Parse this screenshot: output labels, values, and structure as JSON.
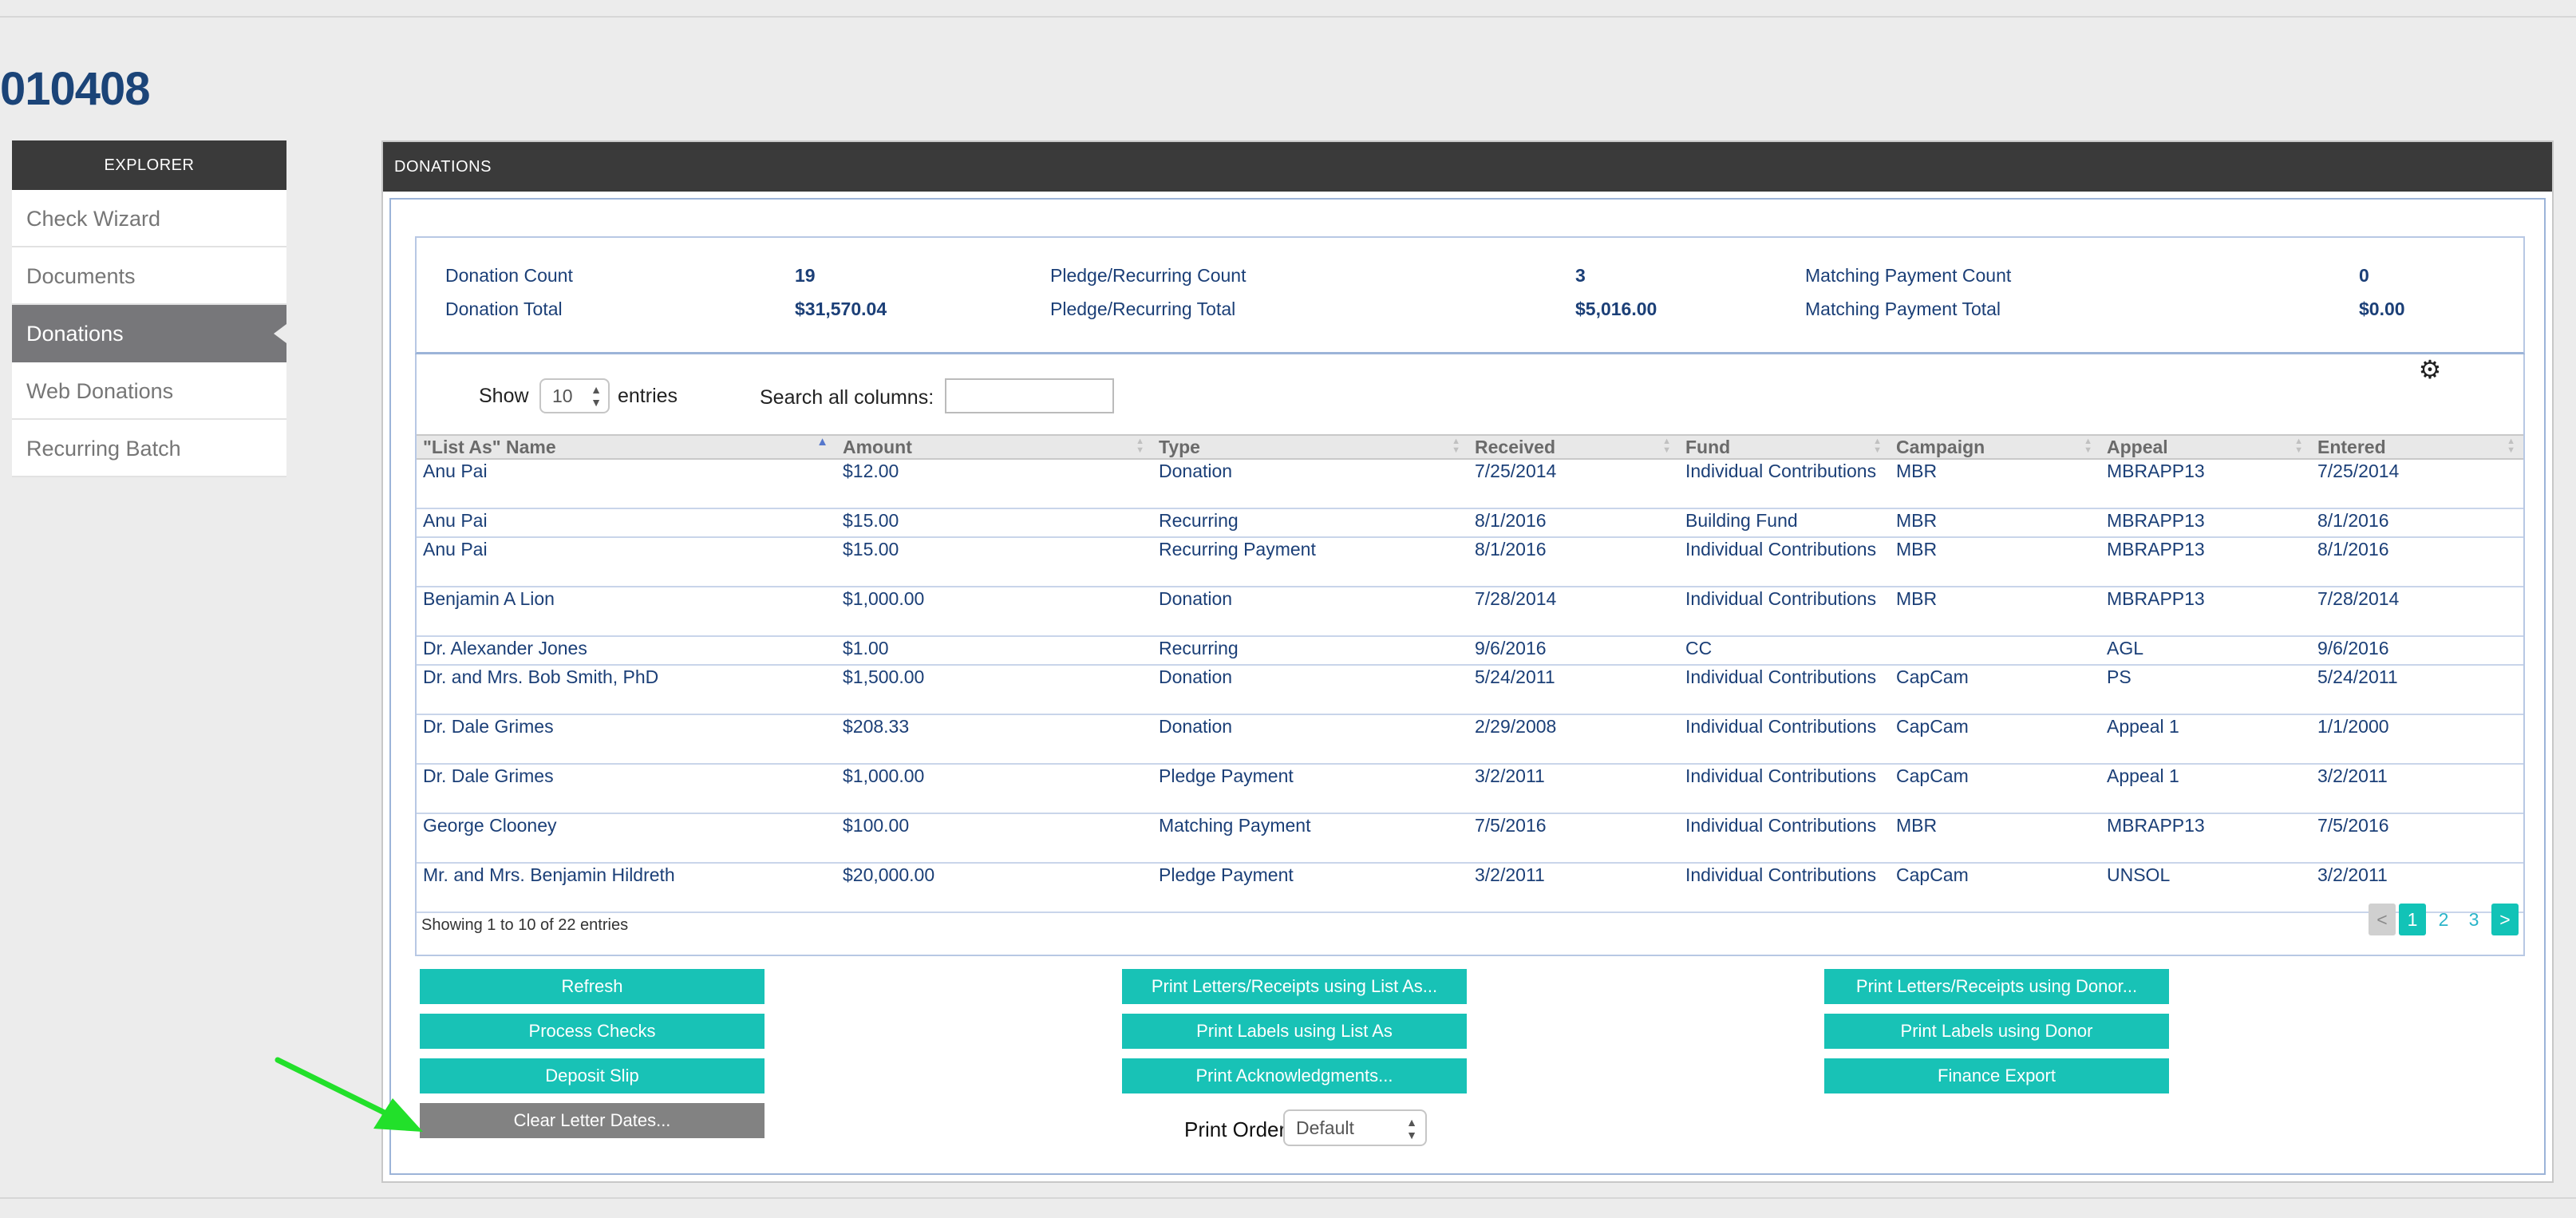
{
  "page_title": "010408",
  "sidebar": {
    "header": "EXPLORER",
    "items": [
      {
        "label": "Check Wizard",
        "active": false
      },
      {
        "label": "Documents",
        "active": false
      },
      {
        "label": "Donations",
        "active": true
      },
      {
        "label": "Web Donations",
        "active": false
      },
      {
        "label": "Recurring Batch",
        "active": false
      }
    ]
  },
  "panel": {
    "title": "DONATIONS"
  },
  "summary": {
    "donation_count_label": "Donation Count",
    "donation_count": "19",
    "donation_total_label": "Donation Total",
    "donation_total": "$31,570.04",
    "pledge_count_label": "Pledge/Recurring Count",
    "pledge_count": "3",
    "pledge_total_label": "Pledge/Recurring Total",
    "pledge_total": "$5,016.00",
    "matching_count_label": "Matching Payment Count",
    "matching_count": "0",
    "matching_total_label": "Matching Payment Total",
    "matching_total": "$0.00"
  },
  "controls": {
    "show_label": "Show",
    "entries_value": "10",
    "entries_label": "entries",
    "search_label": "Search all columns:",
    "search_value": ""
  },
  "table": {
    "columns": [
      "\"List As\" Name",
      "Amount",
      "Type",
      "Received",
      "Fund",
      "Campaign",
      "Appeal",
      "Entered"
    ],
    "rows": [
      [
        "Anu Pai",
        "$12.00",
        "Donation",
        "7/25/2014",
        "Individual Contributions",
        "MBR",
        "MBRAPP13",
        "7/25/2014"
      ],
      [
        "Anu Pai",
        "$15.00",
        "Recurring",
        "8/1/2016",
        "Building Fund",
        "MBR",
        "MBRAPP13",
        "8/1/2016"
      ],
      [
        "Anu Pai",
        "$15.00",
        "Recurring Payment",
        "8/1/2016",
        "Individual Contributions",
        "MBR",
        "MBRAPP13",
        "8/1/2016"
      ],
      [
        "Benjamin A Lion",
        "$1,000.00",
        "Donation",
        "7/28/2014",
        "Individual Contributions",
        "MBR",
        "MBRAPP13",
        "7/28/2014"
      ],
      [
        "Dr. Alexander Jones",
        "$1.00",
        "Recurring",
        "9/6/2016",
        "CC",
        "",
        "AGL",
        "9/6/2016"
      ],
      [
        "Dr. and Mrs. Bob Smith, PhD",
        "$1,500.00",
        "Donation",
        "5/24/2011",
        "Individual Contributions",
        "CapCam",
        "PS",
        "5/24/2011"
      ],
      [
        "Dr. Dale Grimes",
        "$208.33",
        "Donation",
        "2/29/2008",
        "Individual Contributions",
        "CapCam",
        "Appeal 1",
        "1/1/2000"
      ],
      [
        "Dr. Dale Grimes",
        "$1,000.00",
        "Pledge Payment",
        "3/2/2011",
        "Individual Contributions",
        "CapCam",
        "Appeal 1",
        "3/2/2011"
      ],
      [
        "George Clooney",
        "$100.00",
        "Matching Payment",
        "7/5/2016",
        "Individual Contributions",
        "MBR",
        "MBRAPP13",
        "7/5/2016"
      ],
      [
        "Mr. and Mrs. Benjamin Hildreth",
        "$20,000.00",
        "Pledge Payment",
        "3/2/2011",
        "Individual Contributions",
        "CapCam",
        "UNSOL",
        "3/2/2011"
      ]
    ],
    "showing_text": "Showing 1 to 10 of 22 entries"
  },
  "pager": {
    "prev": "<",
    "pages": [
      "1",
      "2",
      "3"
    ],
    "next": ">"
  },
  "buttons": {
    "refresh": "Refresh",
    "process_checks": "Process Checks",
    "deposit_slip": "Deposit Slip",
    "clear_letter_dates": "Clear Letter Dates...",
    "print_letters_list_as": "Print Letters/Receipts using List As...",
    "print_labels_list_as": "Print Labels using List As",
    "print_acknowledgments": "Print Acknowledgments...",
    "print_letters_donor": "Print Letters/Receipts using Donor...",
    "print_labels_donor": "Print Labels using Donor",
    "finance_export": "Finance Export"
  },
  "print_order": {
    "label": "Print Order",
    "value": "Default"
  },
  "icons": {
    "settings": "gear-icon",
    "annotation_arrow": "arrow-icon"
  },
  "colors": {
    "accent": "#18c2b6",
    "header_bg": "#3a3a3a",
    "link_text": "#1b3f77",
    "annotation_arrow": "#22e02a"
  }
}
